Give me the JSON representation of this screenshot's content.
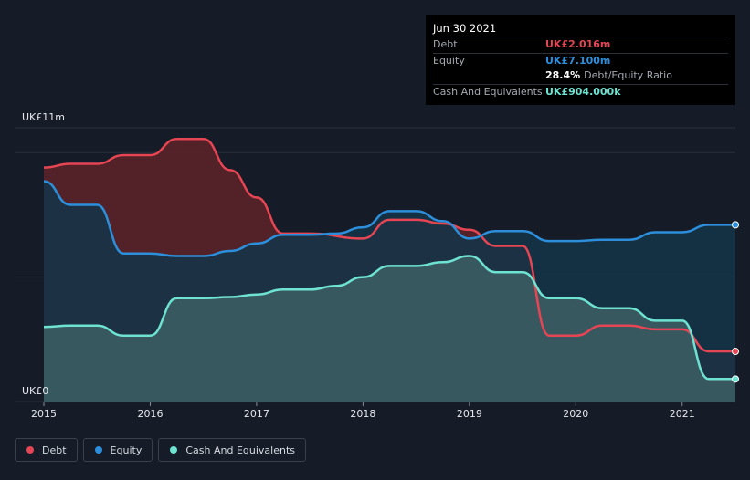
{
  "tooltip": {
    "date": "Jun 30 2021",
    "rows": [
      {
        "label": "Debt",
        "value": "UK£2.016m",
        "color": "#e64553"
      },
      {
        "label": "Equity",
        "value": "UK£7.100m",
        "color": "#2d8fdb"
      },
      {
        "label": "",
        "value": "28.4%",
        "extra": "Debt/Equity Ratio",
        "color": "#ffffff"
      },
      {
        "label": "Cash And Equivalents",
        "value": "UK£904.000k",
        "color": "#6ee3d1"
      }
    ]
  },
  "legend": [
    {
      "label": "Debt",
      "color": "#e64553"
    },
    {
      "label": "Equity",
      "color": "#2d8fdb"
    },
    {
      "label": "Cash And Equivalents",
      "color": "#6ee3d1"
    }
  ],
  "chart_data": {
    "type": "area",
    "y_label_top": "UK£11m",
    "y_label_bottom": "UK£0",
    "ylim": [
      0,
      11
    ],
    "xlim": [
      2015,
      2021.5
    ],
    "x_ticks": [
      "2015",
      "2016",
      "2017",
      "2018",
      "2019",
      "2020",
      "2021"
    ],
    "x_tick_values": [
      2015,
      2016,
      2017,
      2018,
      2019,
      2020,
      2021
    ],
    "grid": "horizontal",
    "legend_position": "bottom-left",
    "series": [
      {
        "name": "Debt",
        "color": "#e64553",
        "fill": "#5a2229",
        "points": [
          [
            2015,
            9.4
          ],
          [
            2015.25,
            9.55
          ],
          [
            2015.5,
            9.55
          ],
          [
            2015.75,
            9.9
          ],
          [
            2016,
            9.9
          ],
          [
            2016.25,
            10.55
          ],
          [
            2016.5,
            10.55
          ],
          [
            2016.75,
            9.3
          ],
          [
            2017,
            8.2
          ],
          [
            2017.25,
            6.75
          ],
          [
            2017.5,
            6.75
          ],
          [
            2018,
            6.55
          ],
          [
            2018.25,
            7.3
          ],
          [
            2018.5,
            7.3
          ],
          [
            2018.75,
            7.15
          ],
          [
            2019,
            6.9
          ],
          [
            2019.25,
            6.25
          ],
          [
            2019.5,
            6.25
          ],
          [
            2019.75,
            2.65
          ],
          [
            2020,
            2.65
          ],
          [
            2020.25,
            3.05
          ],
          [
            2020.5,
            3.05
          ],
          [
            2020.75,
            2.9
          ],
          [
            2021,
            2.9
          ],
          [
            2021.25,
            2.016
          ],
          [
            2021.5,
            2.016
          ]
        ]
      },
      {
        "name": "Equity",
        "color": "#2d8fdb",
        "fill": "#143449",
        "points": [
          [
            2015,
            8.85
          ],
          [
            2015.25,
            7.9
          ],
          [
            2015.5,
            7.9
          ],
          [
            2015.75,
            5.95
          ],
          [
            2016,
            5.95
          ],
          [
            2016.25,
            5.85
          ],
          [
            2016.5,
            5.85
          ],
          [
            2016.75,
            6.05
          ],
          [
            2017,
            6.35
          ],
          [
            2017.25,
            6.7
          ],
          [
            2017.5,
            6.7
          ],
          [
            2017.75,
            6.75
          ],
          [
            2018,
            7.0
          ],
          [
            2018.25,
            7.65
          ],
          [
            2018.5,
            7.65
          ],
          [
            2018.75,
            7.25
          ],
          [
            2019,
            6.55
          ],
          [
            2019.25,
            6.85
          ],
          [
            2019.5,
            6.85
          ],
          [
            2019.75,
            6.45
          ],
          [
            2020,
            6.45
          ],
          [
            2020.25,
            6.5
          ],
          [
            2020.5,
            6.5
          ],
          [
            2020.75,
            6.8
          ],
          [
            2021,
            6.8
          ],
          [
            2021.25,
            7.1
          ],
          [
            2021.5,
            7.1
          ]
        ]
      },
      {
        "name": "Cash And Equivalents",
        "color": "#6ee3d1",
        "fill": "#3a5b62",
        "points": [
          [
            2015,
            3.0
          ],
          [
            2015.25,
            3.05
          ],
          [
            2015.5,
            3.05
          ],
          [
            2015.75,
            2.65
          ],
          [
            2016,
            2.65
          ],
          [
            2016.25,
            4.15
          ],
          [
            2016.5,
            4.15
          ],
          [
            2016.75,
            4.2
          ],
          [
            2017,
            4.3
          ],
          [
            2017.25,
            4.5
          ],
          [
            2017.5,
            4.5
          ],
          [
            2017.75,
            4.65
          ],
          [
            2018,
            5.0
          ],
          [
            2018.25,
            5.45
          ],
          [
            2018.5,
            5.45
          ],
          [
            2018.75,
            5.6
          ],
          [
            2019,
            5.85
          ],
          [
            2019.25,
            5.2
          ],
          [
            2019.5,
            5.2
          ],
          [
            2019.75,
            4.15
          ],
          [
            2020,
            4.15
          ],
          [
            2020.25,
            3.75
          ],
          [
            2020.5,
            3.75
          ],
          [
            2020.75,
            3.25
          ],
          [
            2021,
            3.25
          ],
          [
            2021.25,
            0.904
          ],
          [
            2021.5,
            0.904
          ]
        ]
      }
    ]
  }
}
